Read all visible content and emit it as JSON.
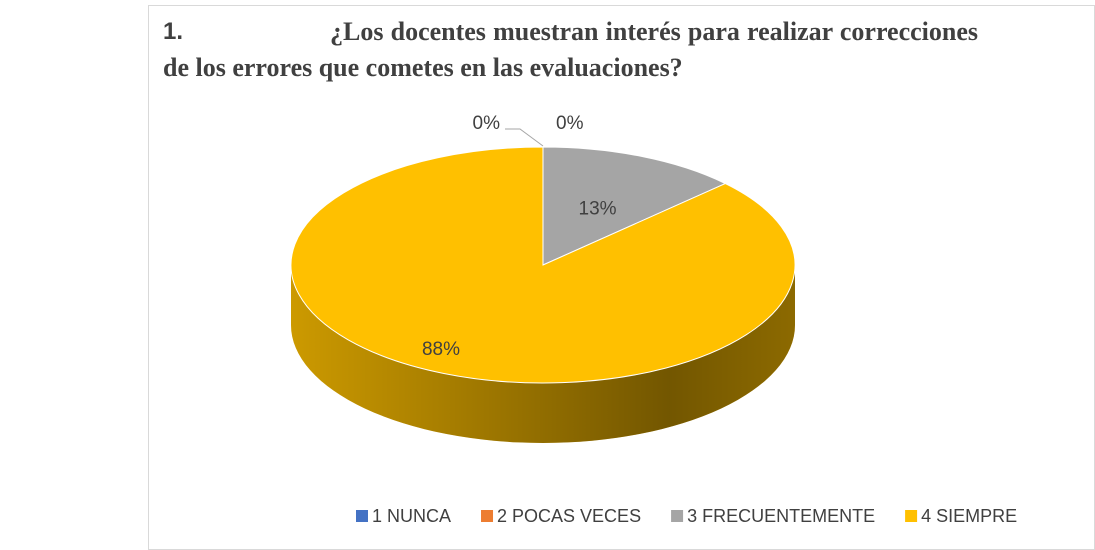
{
  "chart_data": {
    "type": "pie3d",
    "title_number": "1.",
    "title": "¿Los docentes muestran interés para realizar correcciones de los errores que cometes en las evaluaciones?",
    "categories": [
      "1 NUNCA",
      "2 POCAS VECES",
      "3 FRECUENTEMENTE",
      "4 SIEMPRE"
    ],
    "values": [
      0,
      0,
      13,
      88
    ],
    "value_labels": [
      "0%",
      "0%",
      "13%",
      "88%"
    ],
    "colors": [
      "#4472c4",
      "#ed7d31",
      "#a5a5a5",
      "#ffc000"
    ],
    "legend": "bottom"
  }
}
